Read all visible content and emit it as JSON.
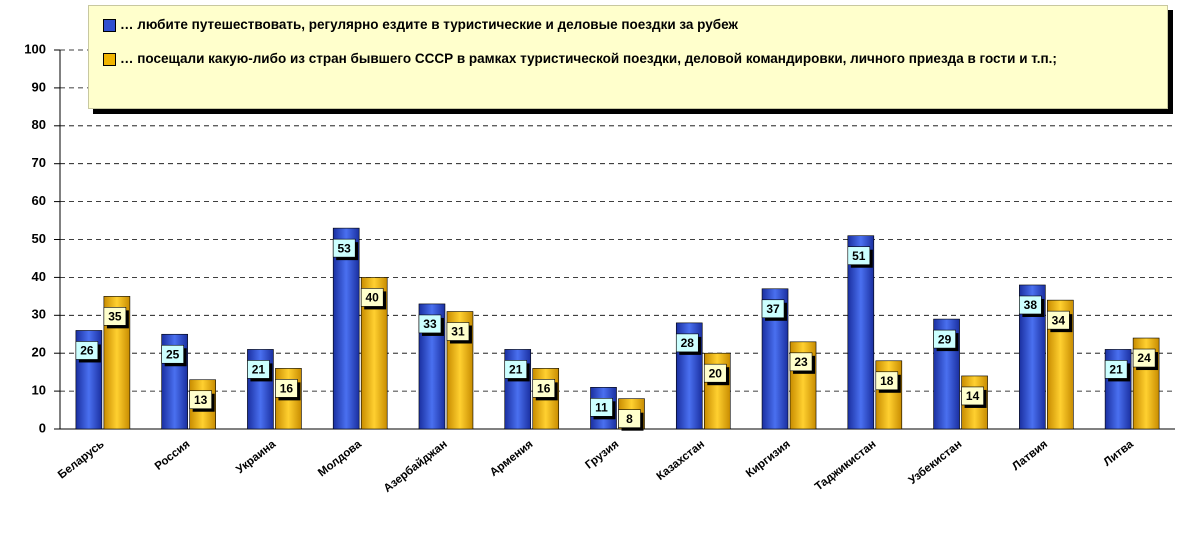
{
  "chart_data": {
    "type": "bar",
    "categories": [
      "Беларусь",
      "Россия",
      "Украина",
      "Молдова",
      "Азербайджан",
      "Армения",
      "Грузия",
      "Казахстан",
      "Киргизия",
      "Таджикистан",
      "Узбекистан",
      "Латвия",
      "Литва"
    ],
    "series": [
      {
        "name": "… любите путешествовать, регулярно ездите в туристические и деловые поездки за рубеж",
        "color": "#3050d0",
        "values": [
          26,
          25,
          21,
          53,
          33,
          21,
          11,
          28,
          37,
          51,
          29,
          38,
          21
        ]
      },
      {
        "name": "… посещали какую-либо из стран бывшего СССР в рамках туристической поездки, деловой командировки, личного приезда в гости и т.п.;",
        "color": "#f0b400",
        "values": [
          35,
          13,
          16,
          40,
          31,
          16,
          8,
          20,
          23,
          18,
          14,
          34,
          24
        ]
      }
    ],
    "ylim": [
      0,
      100
    ],
    "yticks": [
      0,
      10,
      20,
      30,
      40,
      50,
      60,
      70,
      80,
      90,
      100
    ],
    "grid": true
  }
}
